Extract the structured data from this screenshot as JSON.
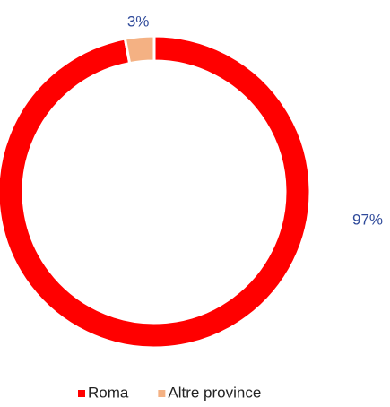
{
  "chart_data": {
    "type": "donut",
    "categories": [
      "Roma",
      "Altre province"
    ],
    "values": [
      97,
      3
    ],
    "value_labels": [
      "97%",
      "3%"
    ],
    "colors": [
      "#ff0000",
      "#f4b183"
    ],
    "legend": "bottom"
  }
}
